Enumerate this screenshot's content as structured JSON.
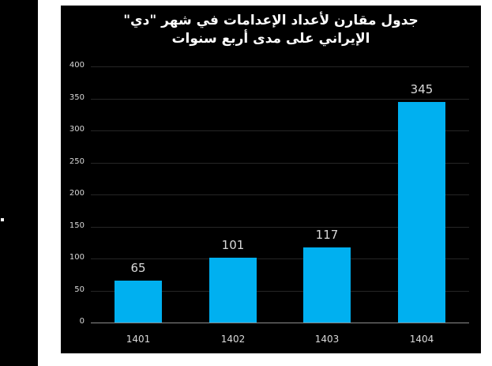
{
  "title_line1": "جدول مقارن لأعداد الإعدامات في شهر \"دي\"",
  "title_line2": "الإيراني على مدى أربع سنوات",
  "colors": {
    "bar": "#00b0f0",
    "background": "#000000",
    "text": "#d9d9d9",
    "gridline": "#262626"
  },
  "chart_data": {
    "type": "bar",
    "title": "جدول مقارن لأعداد الإعدامات في شهر \"دي\" الإيراني على مدى أربع سنوات",
    "categories": [
      "1401",
      "1402",
      "1403",
      "1404"
    ],
    "values": [
      65,
      101,
      117,
      345
    ],
    "data_labels": [
      "65",
      "101",
      "117",
      "345"
    ],
    "xlabel": "",
    "ylabel": "",
    "ylim": [
      0,
      400
    ],
    "yticks": [
      "0",
      "50",
      "100",
      "150",
      "200",
      "250",
      "300",
      "350",
      "400"
    ],
    "grid": true,
    "legend": "none"
  }
}
